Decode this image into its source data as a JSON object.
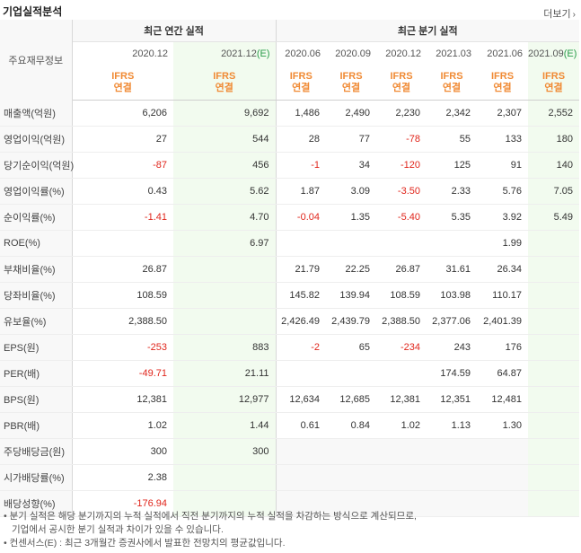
{
  "header": {
    "title": "기업실적분석",
    "more": "더보기"
  },
  "table": {
    "corner_label": "주요재무정보",
    "annual_group": "최근 연간 실적",
    "quarter_group": "최근 분기 실적",
    "columns": [
      {
        "date": "2020.12",
        "est": "",
        "group": "annual"
      },
      {
        "date": "2021.12",
        "est": "(E)",
        "group": "annual"
      },
      {
        "date": "2020.06",
        "est": "",
        "group": "quarter"
      },
      {
        "date": "2020.09",
        "est": "",
        "group": "quarter"
      },
      {
        "date": "2020.12",
        "est": "",
        "group": "quarter"
      },
      {
        "date": "2021.03",
        "est": "",
        "group": "quarter"
      },
      {
        "date": "2021.06",
        "est": "",
        "group": "quarter"
      },
      {
        "date": "2021.09",
        "est": "(E)",
        "group": "quarter"
      }
    ],
    "ifrs_line1": "IFRS",
    "ifrs_line2": "연결",
    "rows": [
      {
        "label": "매출액(억원)",
        "values": [
          "6,206",
          "9,692",
          "1,486",
          "2,490",
          "2,230",
          "2,342",
          "2,307",
          "2,552"
        ]
      },
      {
        "label": "영업이익(억원)",
        "values": [
          "27",
          "544",
          "28",
          "77",
          "-78",
          "55",
          "133",
          "180"
        ]
      },
      {
        "label": "당기순이익(억원)",
        "values": [
          "-87",
          "456",
          "-1",
          "34",
          "-120",
          "125",
          "91",
          "140"
        ]
      },
      {
        "label": "영업이익률(%)",
        "values": [
          "0.43",
          "5.62",
          "1.87",
          "3.09",
          "-3.50",
          "2.33",
          "5.76",
          "7.05"
        ]
      },
      {
        "label": "순이익률(%)",
        "values": [
          "-1.41",
          "4.70",
          "-0.04",
          "1.35",
          "-5.40",
          "5.35",
          "3.92",
          "5.49"
        ]
      },
      {
        "label": "ROE(%)",
        "values": [
          "",
          "6.97",
          "",
          "",
          "",
          "",
          "1.99",
          ""
        ]
      },
      {
        "label": "부채비율(%)",
        "values": [
          "26.87",
          "",
          "21.79",
          "22.25",
          "26.87",
          "31.61",
          "26.34",
          ""
        ]
      },
      {
        "label": "당좌비율(%)",
        "values": [
          "108.59",
          "",
          "145.82",
          "139.94",
          "108.59",
          "103.98",
          "110.17",
          ""
        ]
      },
      {
        "label": "유보율(%)",
        "values": [
          "2,388.50",
          "",
          "2,426.49",
          "2,439.79",
          "2,388.50",
          "2,377.06",
          "2,401.39",
          ""
        ]
      },
      {
        "label": "EPS(원)",
        "values": [
          "-253",
          "883",
          "-2",
          "65",
          "-234",
          "243",
          "176",
          ""
        ]
      },
      {
        "label": "PER(배)",
        "values": [
          "-49.71",
          "21.11",
          "",
          "",
          "",
          "174.59",
          "64.87",
          ""
        ]
      },
      {
        "label": "BPS(원)",
        "values": [
          "12,381",
          "12,977",
          "12,634",
          "12,685",
          "12,381",
          "12,351",
          "12,481",
          ""
        ]
      },
      {
        "label": "PBR(배)",
        "values": [
          "1.02",
          "1.44",
          "0.61",
          "0.84",
          "1.02",
          "1.13",
          "1.30",
          ""
        ]
      },
      {
        "label": "주당배당금(원)",
        "values": [
          "300",
          "300",
          "",
          "",
          "",
          "",
          "",
          ""
        ]
      },
      {
        "label": "시가배당률(%)",
        "values": [
          "2.38",
          "",
          "",
          "",
          "",
          "",
          "",
          ""
        ]
      },
      {
        "label": "배당성향(%)",
        "values": [
          "-176.94",
          "",
          "",
          "",
          "",
          "",
          "",
          ""
        ]
      }
    ]
  },
  "notes": {
    "line1": "• 분기 실적은 해당 분기까지의 누적 실적에서 직전 분기까지의 누적 실적을 차감하는 방식으로 계산되므로,",
    "line2": "기업에서 공시한 분기 실적과 차이가 있을 수 있습니다.",
    "line3": "• 컨센서스(E) : 최근 3개월간 증권사에서 발표한 전망치의 평균값입니다."
  },
  "colors": {
    "negative": "#e0251b",
    "ifrs": "#f08a34",
    "estimate_bg": "#f2fbef",
    "estimate_tag": "#2a9d4a"
  }
}
